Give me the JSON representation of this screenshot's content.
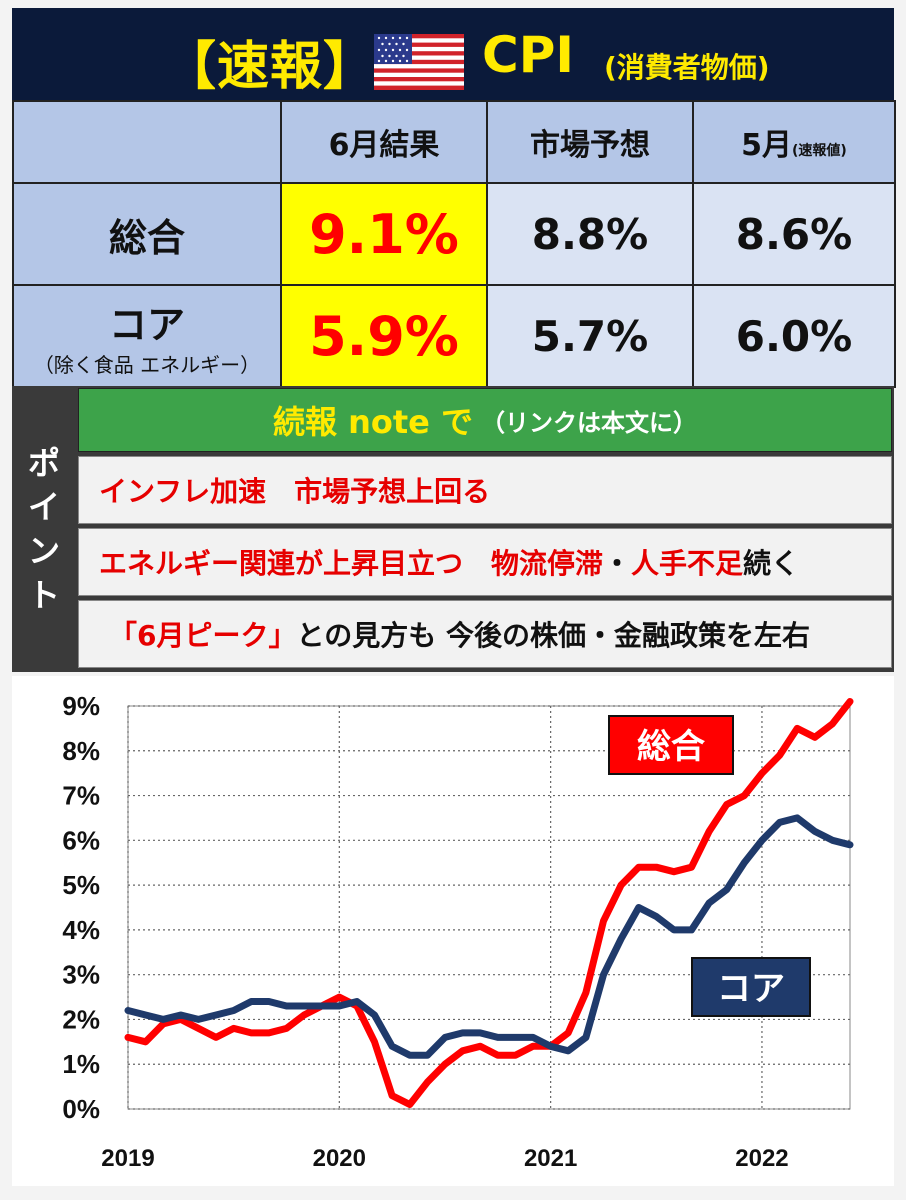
{
  "header": {
    "title": "【速報】",
    "cpi": "CPI",
    "subtitle": "(消費者物価)",
    "flag_icon": "us-flag-icon"
  },
  "table": {
    "columns": [
      "6月結果",
      "市場予想",
      "5月"
    ],
    "column_note": "(速報値)",
    "rows": [
      {
        "label": "総合",
        "note": "",
        "result": "9.1%",
        "forecast": "8.8%",
        "may": "8.6%"
      },
      {
        "label": "コア",
        "note": "（除く食品 エネルギー）",
        "result": "5.9%",
        "forecast": "5.7%",
        "may": "6.0%"
      }
    ]
  },
  "points": {
    "side_label": [
      "ポ",
      "イ",
      "ン",
      "ト"
    ],
    "note_main": "続報 note で",
    "note_paren": "（リンクは本文に）",
    "item1": "インフレ加速　市場予想上回る",
    "item2_red1": "エネルギー関連が上昇目立つ　物流停滞",
    "item2_dot": "・",
    "item2_red2": "人手不足",
    "item2_black": "続く",
    "item3_red": "「6月ピーク」",
    "item3_black": "との見方も  今後の株価・金融政策を左右"
  },
  "colors": {
    "total": "#ff0000",
    "core": "#1f3a6b",
    "header_bg": "#0b1a3a",
    "title_yellow": "#ffea00"
  },
  "chart_data": {
    "type": "line",
    "title": "",
    "xlabel": "",
    "ylabel": "",
    "x_tick_labels": [
      "2019",
      "2020",
      "2021",
      "2022"
    ],
    "x_ticks": [
      0,
      12,
      24,
      36
    ],
    "xlim": [
      0,
      41
    ],
    "ylim": [
      0,
      9
    ],
    "y_tick_labels": [
      "0%",
      "1%",
      "2%",
      "3%",
      "4%",
      "5%",
      "6%",
      "7%",
      "8%",
      "9%"
    ],
    "grid": true,
    "series": [
      {
        "name": "総合",
        "color": "#ff0000",
        "values": [
          1.6,
          1.5,
          1.9,
          2.0,
          1.8,
          1.6,
          1.8,
          1.7,
          1.7,
          1.8,
          2.1,
          2.3,
          2.5,
          2.3,
          1.5,
          0.3,
          0.1,
          0.6,
          1.0,
          1.3,
          1.4,
          1.2,
          1.2,
          1.4,
          1.4,
          1.7,
          2.6,
          4.2,
          5.0,
          5.4,
          5.4,
          5.3,
          5.4,
          6.2,
          6.8,
          7.0,
          7.5,
          7.9,
          8.5,
          8.3,
          8.6,
          9.1
        ]
      },
      {
        "name": "コア",
        "color": "#1f3a6b",
        "values": [
          2.2,
          2.1,
          2.0,
          2.1,
          2.0,
          2.1,
          2.2,
          2.4,
          2.4,
          2.3,
          2.3,
          2.3,
          2.3,
          2.4,
          2.1,
          1.4,
          1.2,
          1.2,
          1.6,
          1.7,
          1.7,
          1.6,
          1.6,
          1.6,
          1.4,
          1.3,
          1.6,
          3.0,
          3.8,
          4.5,
          4.3,
          4.0,
          4.0,
          4.6,
          4.9,
          5.5,
          6.0,
          6.4,
          6.5,
          6.2,
          6.0,
          5.9
        ]
      }
    ]
  }
}
